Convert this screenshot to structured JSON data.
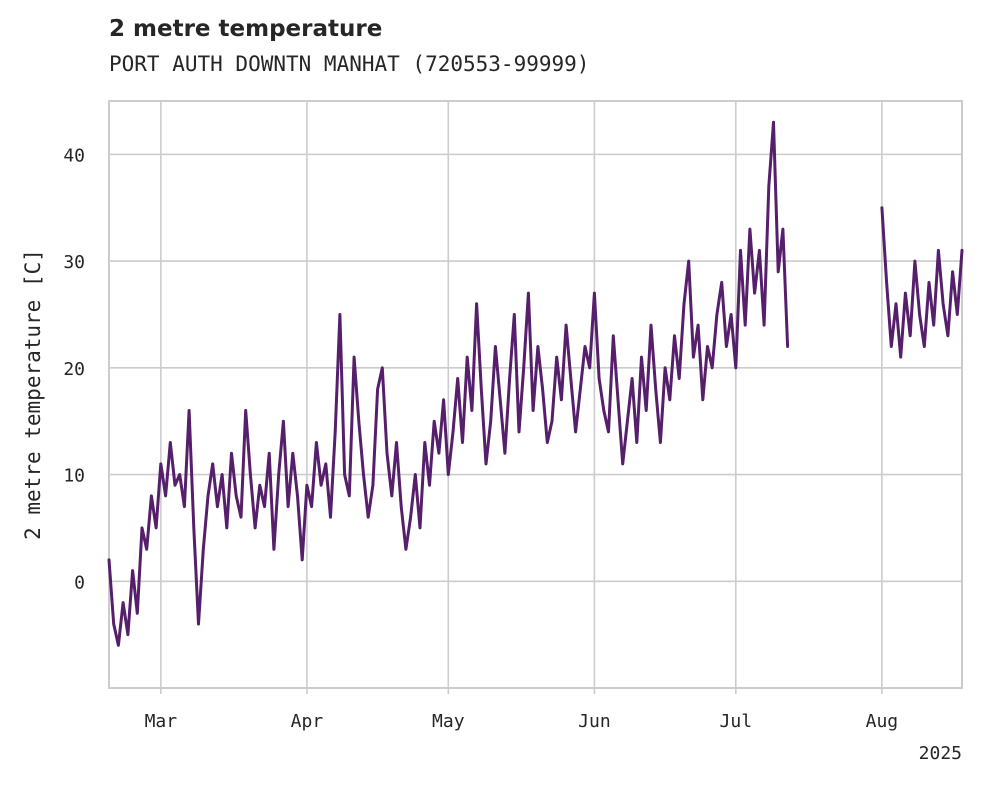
{
  "chart_data": {
    "type": "line",
    "title": "2 metre temperature",
    "subtitle": "PORT AUTH DOWNTN MANHAT (720553-99999)",
    "ylabel": "2 metre temperature [C]",
    "xlabel": "",
    "x_tick_labels": [
      "Mar",
      "Apr",
      "May",
      "Jun",
      "Jul",
      "Aug"
    ],
    "x_ticks": [
      "2025-03-01",
      "2025-04-01",
      "2025-05-01",
      "2025-06-01",
      "2025-07-01",
      "2025-08-01"
    ],
    "x_offset_label": "2025",
    "y_ticks": [
      0,
      10,
      20,
      30,
      40
    ],
    "xlim": [
      "2025-02-18",
      "2025-08-18"
    ],
    "ylim": [
      -10,
      45
    ],
    "grid": true,
    "line_color": "#561f6b",
    "series": [
      {
        "values": [
          [
            "2025-02-18",
            2
          ],
          [
            "2025-02-19",
            -4
          ],
          [
            "2025-02-20",
            -6
          ],
          [
            "2025-02-21",
            -2
          ],
          [
            "2025-02-22",
            -5
          ],
          [
            "2025-02-23",
            1
          ],
          [
            "2025-02-24",
            -3
          ],
          [
            "2025-02-25",
            5
          ],
          [
            "2025-02-26",
            3
          ],
          [
            "2025-02-27",
            8
          ],
          [
            "2025-02-28",
            5
          ],
          [
            "2025-03-01",
            11
          ],
          [
            "2025-03-02",
            8
          ],
          [
            "2025-03-03",
            13
          ],
          [
            "2025-03-04",
            9
          ],
          [
            "2025-03-05",
            10
          ],
          [
            "2025-03-06",
            7
          ],
          [
            "2025-03-07",
            16
          ],
          [
            "2025-03-08",
            5
          ],
          [
            "2025-03-09",
            -4
          ],
          [
            "2025-03-10",
            3
          ],
          [
            "2025-03-11",
            8
          ],
          [
            "2025-03-12",
            11
          ],
          [
            "2025-03-13",
            7
          ],
          [
            "2025-03-14",
            10
          ],
          [
            "2025-03-15",
            5
          ],
          [
            "2025-03-16",
            12
          ],
          [
            "2025-03-17",
            8
          ],
          [
            "2025-03-18",
            6
          ],
          [
            "2025-03-19",
            16
          ],
          [
            "2025-03-20",
            10
          ],
          [
            "2025-03-21",
            5
          ],
          [
            "2025-03-22",
            9
          ],
          [
            "2025-03-23",
            7
          ],
          [
            "2025-03-24",
            12
          ],
          [
            "2025-03-25",
            3
          ],
          [
            "2025-03-26",
            10
          ],
          [
            "2025-03-27",
            15
          ],
          [
            "2025-03-28",
            7
          ],
          [
            "2025-03-29",
            12
          ],
          [
            "2025-03-30",
            8
          ],
          [
            "2025-03-31",
            2
          ],
          [
            "2025-04-01",
            9
          ],
          [
            "2025-04-02",
            7
          ],
          [
            "2025-04-03",
            13
          ],
          [
            "2025-04-04",
            9
          ],
          [
            "2025-04-05",
            11
          ],
          [
            "2025-04-06",
            6
          ],
          [
            "2025-04-07",
            14
          ],
          [
            "2025-04-08",
            25
          ],
          [
            "2025-04-09",
            10
          ],
          [
            "2025-04-10",
            8
          ],
          [
            "2025-04-11",
            21
          ],
          [
            "2025-04-12",
            15
          ],
          [
            "2025-04-13",
            10
          ],
          [
            "2025-04-14",
            6
          ],
          [
            "2025-04-15",
            9
          ],
          [
            "2025-04-16",
            18
          ],
          [
            "2025-04-17",
            20
          ],
          [
            "2025-04-18",
            12
          ],
          [
            "2025-04-19",
            8
          ],
          [
            "2025-04-20",
            13
          ],
          [
            "2025-04-21",
            7
          ],
          [
            "2025-04-22",
            3
          ],
          [
            "2025-04-23",
            6
          ],
          [
            "2025-04-24",
            10
          ],
          [
            "2025-04-25",
            5
          ],
          [
            "2025-04-26",
            13
          ],
          [
            "2025-04-27",
            9
          ],
          [
            "2025-04-28",
            15
          ],
          [
            "2025-04-29",
            12
          ],
          [
            "2025-04-30",
            17
          ],
          [
            "2025-05-01",
            10
          ],
          [
            "2025-05-02",
            14
          ],
          [
            "2025-05-03",
            19
          ],
          [
            "2025-05-04",
            13
          ],
          [
            "2025-05-05",
            21
          ],
          [
            "2025-05-06",
            16
          ],
          [
            "2025-05-07",
            26
          ],
          [
            "2025-05-08",
            18
          ],
          [
            "2025-05-09",
            11
          ],
          [
            "2025-05-10",
            15
          ],
          [
            "2025-05-11",
            22
          ],
          [
            "2025-05-12",
            17
          ],
          [
            "2025-05-13",
            12
          ],
          [
            "2025-05-14",
            19
          ],
          [
            "2025-05-15",
            25
          ],
          [
            "2025-05-16",
            14
          ],
          [
            "2025-05-17",
            20
          ],
          [
            "2025-05-18",
            27
          ],
          [
            "2025-05-19",
            16
          ],
          [
            "2025-05-20",
            22
          ],
          [
            "2025-05-21",
            18
          ],
          [
            "2025-05-22",
            13
          ],
          [
            "2025-05-23",
            15
          ],
          [
            "2025-05-24",
            21
          ],
          [
            "2025-05-25",
            17
          ],
          [
            "2025-05-26",
            24
          ],
          [
            "2025-05-27",
            19
          ],
          [
            "2025-05-28",
            14
          ],
          [
            "2025-05-29",
            18
          ],
          [
            "2025-05-30",
            22
          ],
          [
            "2025-05-31",
            20
          ],
          [
            "2025-06-01",
            27
          ],
          [
            "2025-06-02",
            19
          ],
          [
            "2025-06-03",
            16
          ],
          [
            "2025-06-04",
            14
          ],
          [
            "2025-06-05",
            23
          ],
          [
            "2025-06-06",
            17
          ],
          [
            "2025-06-07",
            11
          ],
          [
            "2025-06-08",
            15
          ],
          [
            "2025-06-09",
            19
          ],
          [
            "2025-06-10",
            13
          ],
          [
            "2025-06-11",
            21
          ],
          [
            "2025-06-12",
            16
          ],
          [
            "2025-06-13",
            24
          ],
          [
            "2025-06-14",
            18
          ],
          [
            "2025-06-15",
            13
          ],
          [
            "2025-06-16",
            20
          ],
          [
            "2025-06-17",
            17
          ],
          [
            "2025-06-18",
            23
          ],
          [
            "2025-06-19",
            19
          ],
          [
            "2025-06-20",
            26
          ],
          [
            "2025-06-21",
            30
          ],
          [
            "2025-06-22",
            21
          ],
          [
            "2025-06-23",
            24
          ],
          [
            "2025-06-24",
            17
          ],
          [
            "2025-06-25",
            22
          ],
          [
            "2025-06-26",
            20
          ],
          [
            "2025-06-27",
            25
          ],
          [
            "2025-06-28",
            28
          ],
          [
            "2025-06-29",
            22
          ],
          [
            "2025-06-30",
            25
          ],
          [
            "2025-07-01",
            20
          ],
          [
            "2025-07-02",
            31
          ],
          [
            "2025-07-03",
            24
          ],
          [
            "2025-07-04",
            33
          ],
          [
            "2025-07-05",
            27
          ],
          [
            "2025-07-06",
            31
          ],
          [
            "2025-07-07",
            24
          ],
          [
            "2025-07-08",
            37
          ],
          [
            "2025-07-09",
            43
          ],
          [
            "2025-07-10",
            29
          ],
          [
            "2025-07-11",
            33
          ],
          [
            "2025-07-12",
            22
          ]
        ]
      },
      {
        "values": [
          [
            "2025-08-01",
            35
          ],
          [
            "2025-08-02",
            28
          ],
          [
            "2025-08-03",
            22
          ],
          [
            "2025-08-04",
            26
          ],
          [
            "2025-08-05",
            21
          ],
          [
            "2025-08-06",
            27
          ],
          [
            "2025-08-07",
            23
          ],
          [
            "2025-08-08",
            30
          ],
          [
            "2025-08-09",
            25
          ],
          [
            "2025-08-10",
            22
          ],
          [
            "2025-08-11",
            28
          ],
          [
            "2025-08-12",
            24
          ],
          [
            "2025-08-13",
            31
          ],
          [
            "2025-08-14",
            26
          ],
          [
            "2025-08-15",
            23
          ],
          [
            "2025-08-16",
            29
          ],
          [
            "2025-08-17",
            25
          ],
          [
            "2025-08-18",
            31
          ]
        ]
      }
    ]
  }
}
